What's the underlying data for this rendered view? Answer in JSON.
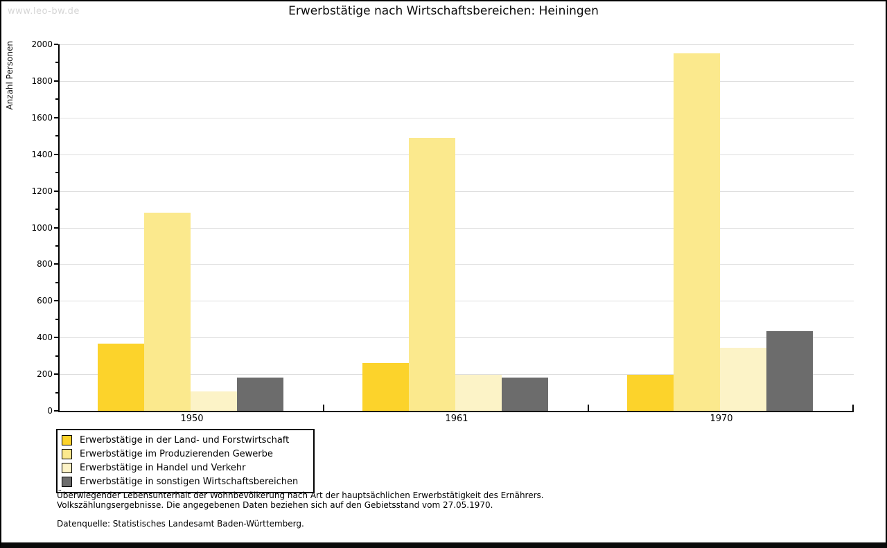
{
  "chart_data": {
    "type": "bar",
    "title": "Erwerbstätige nach Wirtschaftsbereichen: Heiningen",
    "watermark": "www.leo-bw.de",
    "ylabel": "Anzahl Personen",
    "xlabel": "",
    "ylim": [
      0,
      2000
    ],
    "ytick_step": 200,
    "yminor_step": 100,
    "grid": true,
    "legend_position": "bottom-left",
    "categories": [
      "1950",
      "1961",
      "1970"
    ],
    "series": [
      {
        "name": "Erwerbstätige in der Land- und Forstwirtschaft",
        "color": "#fcd32b",
        "values": [
          365,
          260,
          195
        ]
      },
      {
        "name": "Erwerbstätige im Produzierenden Gewerbe",
        "color": "#fbe98d",
        "values": [
          1080,
          1490,
          1950
        ]
      },
      {
        "name": "Erwerbstätige in Handel und Verkehr",
        "color": "#fcf3c7",
        "values": [
          105,
          195,
          345
        ]
      },
      {
        "name": "Erwerbstätige in sonstigen Wirtschaftsbereichen",
        "color": "#6c6c6c",
        "values": [
          180,
          180,
          435
        ]
      }
    ],
    "footnotes": [
      "Überwiegender Lebensunterhalt der Wohnbevölkerung nach Art der hauptsächlichen Erwerbstätigkeit des Ernährers.",
      "Volkszählungsergebnisse. Die angegebenen Daten beziehen sich auf den Gebietsstand vom 27.05.1970."
    ],
    "source": "Datenquelle: Statistisches Landesamt Baden-Württemberg."
  }
}
